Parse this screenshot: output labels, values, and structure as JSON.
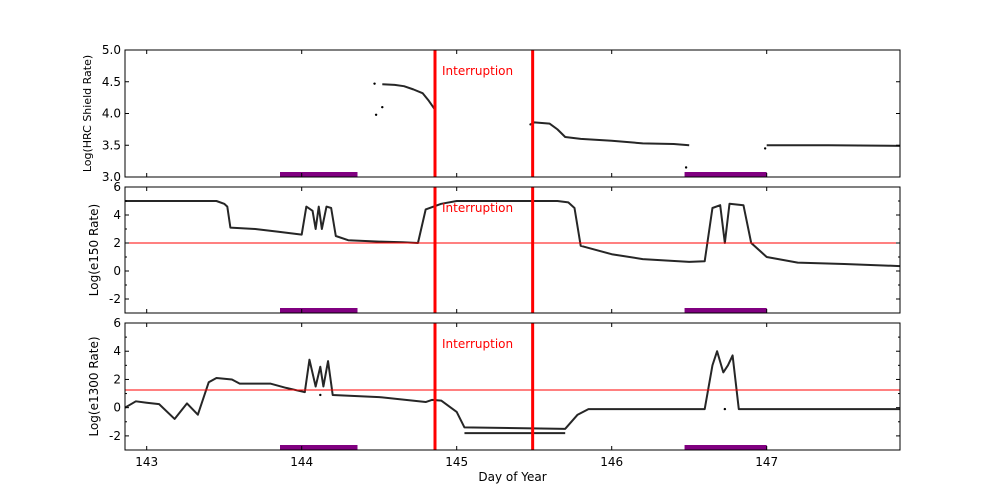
{
  "chart_data": [
    {
      "type": "line",
      "ylabel": "Log(HRC Shield Rate)",
      "xlim": [
        142.86,
        147.86
      ],
      "ylim": [
        3.0,
        5.0
      ],
      "yticks": [
        "3.0",
        "3.5",
        "4.0",
        "4.5",
        "5.0"
      ],
      "ytick_values": [
        3.0,
        3.5,
        4.0,
        4.5,
        5.0
      ],
      "series": [
        {
          "color": "#000000",
          "segments": [
            [
              [
                144.52,
                4.46
              ],
              [
                144.6,
                4.45
              ],
              [
                144.66,
                4.43
              ],
              [
                144.72,
                4.38
              ],
              [
                144.78,
                4.32
              ],
              [
                144.82,
                4.2
              ],
              [
                144.86,
                4.06
              ]
            ],
            [
              [
                145.47,
                3.82
              ],
              [
                145.5,
                3.86
              ],
              [
                145.6,
                3.84
              ],
              [
                145.65,
                3.75
              ],
              [
                145.7,
                3.63
              ],
              [
                145.8,
                3.6
              ],
              [
                146.0,
                3.57
              ],
              [
                146.2,
                3.53
              ],
              [
                146.4,
                3.52
              ],
              [
                146.5,
                3.5
              ]
            ],
            [
              [
                147.0,
                3.5
              ],
              [
                147.4,
                3.5
              ],
              [
                147.86,
                3.49
              ]
            ]
          ],
          "points": [
            [
              144.47,
              4.47
            ],
            [
              144.48,
              3.98
            ],
            [
              144.52,
              4.1
            ],
            [
              146.48,
              3.15
            ],
            [
              146.99,
              3.45
            ]
          ]
        }
      ],
      "hlines": [],
      "annotation": "Interruption"
    },
    {
      "type": "line",
      "ylabel": "Log(e150  Rate)",
      "xlim": [
        142.86,
        147.86
      ],
      "ylim": [
        -3,
        6
      ],
      "yticks": [
        "-2",
        "0",
        "2",
        "4",
        "6"
      ],
      "ytick_values": [
        -2,
        0,
        2,
        4,
        6
      ],
      "series": [
        {
          "color": "#000000",
          "segments": [
            [
              [
                142.86,
                5.0
              ],
              [
                143.45,
                5.0
              ],
              [
                143.5,
                4.8
              ],
              [
                143.52,
                4.6
              ],
              [
                143.54,
                3.1
              ],
              [
                143.7,
                3.0
              ],
              [
                143.85,
                2.8
              ],
              [
                144.0,
                2.6
              ],
              [
                144.03,
                4.6
              ],
              [
                144.07,
                4.3
              ],
              [
                144.09,
                3.0
              ],
              [
                144.11,
                4.6
              ],
              [
                144.13,
                3.0
              ],
              [
                144.16,
                4.6
              ],
              [
                144.19,
                4.5
              ],
              [
                144.22,
                2.5
              ],
              [
                144.3,
                2.2
              ],
              [
                144.5,
                2.1
              ],
              [
                144.65,
                2.05
              ],
              [
                144.75,
                2.0
              ],
              [
                144.8,
                4.4
              ],
              [
                144.9,
                4.8
              ],
              [
                145.0,
                5.0
              ],
              [
                145.3,
                5.0
              ],
              [
                145.65,
                5.0
              ],
              [
                145.72,
                4.9
              ],
              [
                145.76,
                4.5
              ],
              [
                145.8,
                1.8
              ],
              [
                146.0,
                1.2
              ],
              [
                146.2,
                0.85
              ],
              [
                146.5,
                0.65
              ],
              [
                146.6,
                0.7
              ],
              [
                146.65,
                4.5
              ],
              [
                146.7,
                4.7
              ],
              [
                146.73,
                2.0
              ],
              [
                146.76,
                4.8
              ],
              [
                146.85,
                4.7
              ],
              [
                146.9,
                2.0
              ],
              [
                147.0,
                1.0
              ],
              [
                147.2,
                0.6
              ],
              [
                147.5,
                0.5
              ],
              [
                147.86,
                0.35
              ]
            ]
          ],
          "points": []
        }
      ],
      "hlines": [
        2
      ],
      "annotation": "Interruption"
    },
    {
      "type": "line",
      "ylabel": "Log(e1300 Rate)",
      "xlabel": "Day of Year",
      "xlim": [
        142.86,
        147.86
      ],
      "ylim": [
        -3,
        6
      ],
      "xticks": [
        "143",
        "144",
        "145",
        "146",
        "147"
      ],
      "xtick_values": [
        143,
        144,
        145,
        146,
        147
      ],
      "yticks": [
        "-2",
        "0",
        "2",
        "4",
        "6"
      ],
      "ytick_values": [
        -2,
        0,
        2,
        4,
        6
      ],
      "series": [
        {
          "color": "#000000",
          "segments": [
            [
              [
                142.86,
                0.0
              ],
              [
                142.93,
                0.45
              ],
              [
                143.0,
                0.35
              ],
              [
                143.08,
                0.25
              ],
              [
                143.18,
                -0.8
              ],
              [
                143.26,
                0.3
              ],
              [
                143.33,
                -0.5
              ],
              [
                143.4,
                1.8
              ],
              [
                143.45,
                2.1
              ],
              [
                143.55,
                2.0
              ],
              [
                143.6,
                1.7
              ],
              [
                143.8,
                1.7
              ],
              [
                143.9,
                1.4
              ],
              [
                144.0,
                1.15
              ],
              [
                144.02,
                1.1
              ],
              [
                144.05,
                3.4
              ],
              [
                144.09,
                1.5
              ],
              [
                144.12,
                2.9
              ],
              [
                144.14,
                1.5
              ],
              [
                144.17,
                3.3
              ],
              [
                144.2,
                0.9
              ],
              [
                144.5,
                0.75
              ],
              [
                144.8,
                0.4
              ],
              [
                144.84,
                0.55
              ],
              [
                144.9,
                0.5
              ],
              [
                145.0,
                -0.3
              ],
              [
                145.05,
                -1.4
              ],
              [
                145.7,
                -1.5
              ],
              [
                145.78,
                -0.5
              ],
              [
                145.85,
                -0.1
              ],
              [
                146.6,
                -0.1
              ],
              [
                146.65,
                3.0
              ],
              [
                146.68,
                4.0
              ],
              [
                146.72,
                2.5
              ],
              [
                146.75,
                3.0
              ],
              [
                146.78,
                3.7
              ],
              [
                146.82,
                -0.1
              ],
              [
                147.86,
                -0.1
              ]
            ],
            [
              [
                145.05,
                -1.8
              ],
              [
                145.7,
                -1.8
              ]
            ]
          ],
          "points": [
            [
              144.12,
              0.9
            ],
            [
              146.73,
              -0.1
            ]
          ]
        }
      ],
      "hlines": [
        1.25
      ],
      "annotation": "Interruption"
    }
  ],
  "interruptions": [
    144.86,
    145.49
  ],
  "coverage_bars": [
    [
      143.86,
      144.36
    ],
    [
      146.47,
      147.0
    ]
  ],
  "colors": {
    "interruption": "#ff0000",
    "threshold": "#ff0000",
    "coverage": "#800080",
    "data": "#000000"
  }
}
